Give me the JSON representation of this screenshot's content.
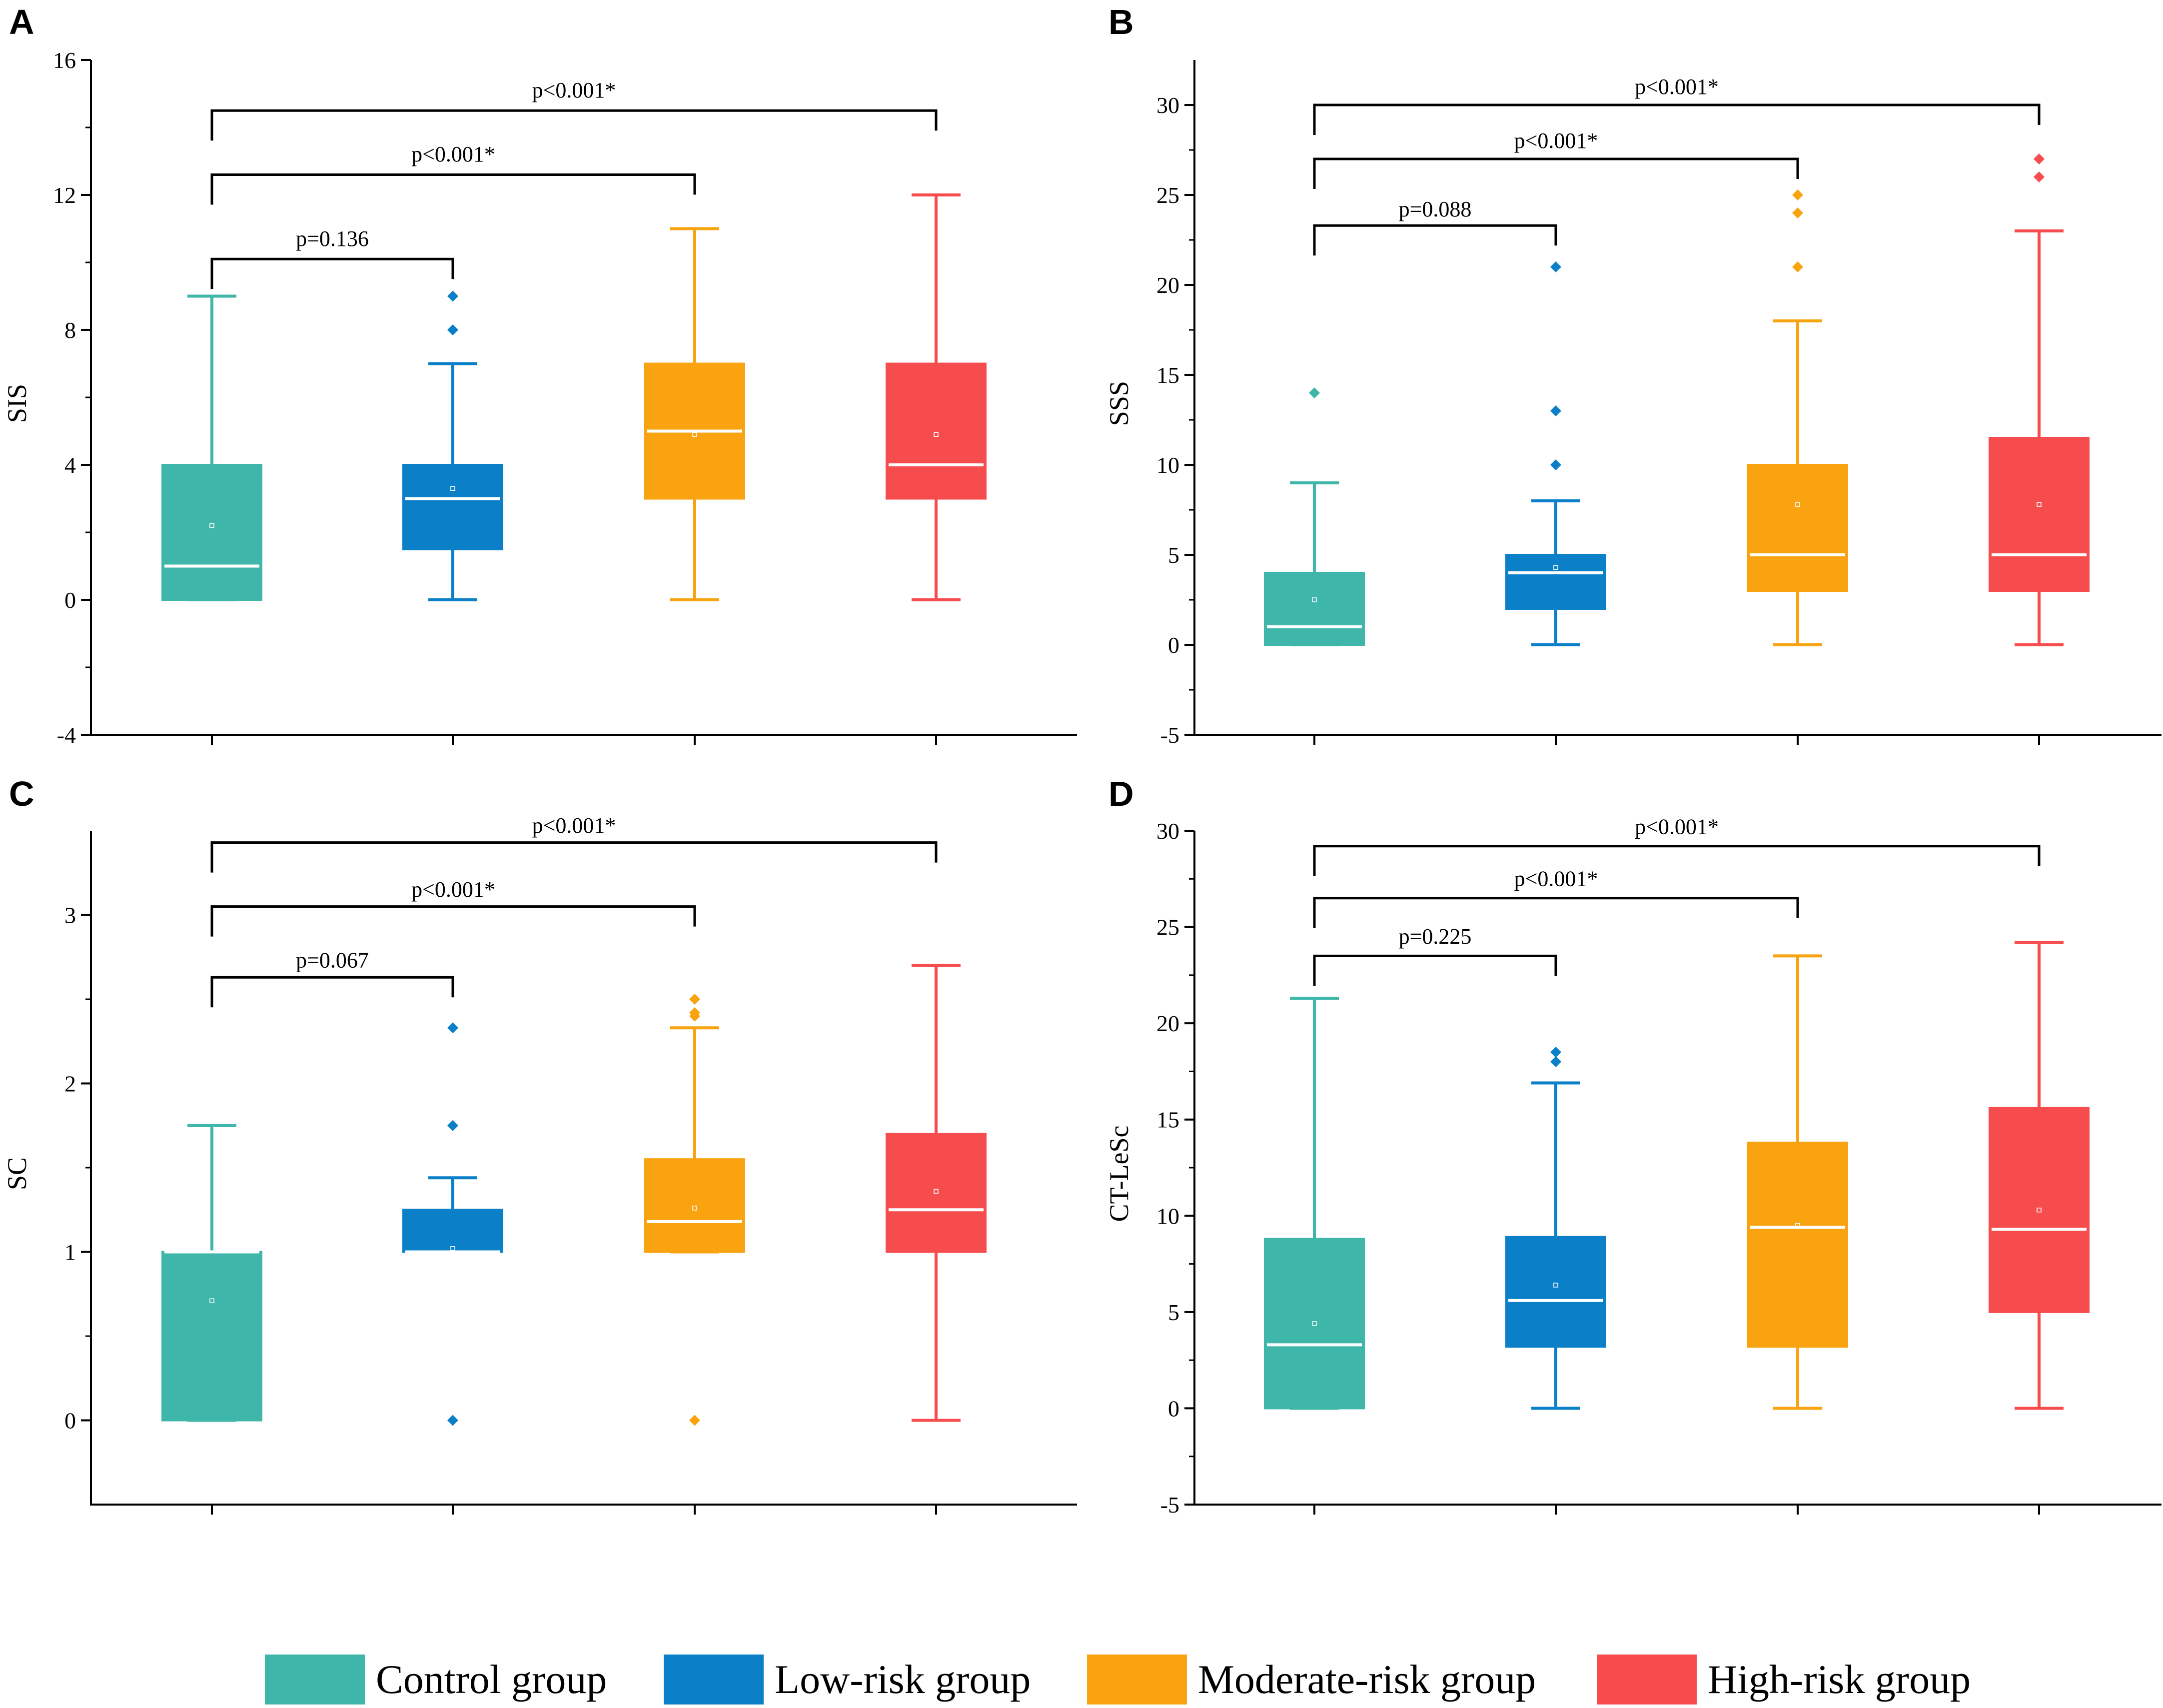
{
  "groups": [
    {
      "name": "Control group",
      "color": "#3fb6aa"
    },
    {
      "name": "Low-risk group",
      "color": "#0b80c8"
    },
    {
      "name": "Moderate-risk group",
      "color": "#f8a30f"
    },
    {
      "name": "High-risk group",
      "color": "#f74c4d"
    }
  ],
  "chart_data": [
    {
      "panel": "A",
      "type": "box",
      "ylabel": "SIS",
      "ylim": [
        -4,
        16
      ],
      "yticks": [
        -4,
        0,
        4,
        8,
        12,
        16
      ],
      "boxes": [
        {
          "group": "Control group",
          "min": 0,
          "q1": 0,
          "median": 1,
          "q3": 4,
          "max": 9,
          "mean": 2.2,
          "outliers": []
        },
        {
          "group": "Low-risk group",
          "min": 0,
          "q1": 1.5,
          "median": 3,
          "q3": 4,
          "max": 7,
          "mean": 3.3,
          "outliers": [
            8,
            9
          ]
        },
        {
          "group": "Moderate-risk group",
          "min": 0,
          "q1": 3,
          "median": 5,
          "q3": 7,
          "max": 11,
          "mean": 4.9,
          "outliers": []
        },
        {
          "group": "High-risk group",
          "min": 0,
          "q1": 3,
          "median": 4,
          "q3": 7,
          "max": 12,
          "mean": 4.9,
          "outliers": []
        }
      ],
      "comparisons": [
        {
          "to": 1,
          "label": "p=0.136",
          "y": 10.1,
          "label_y": 10.7
        },
        {
          "to": 2,
          "label": "p<0.001*",
          "y": 12.6,
          "label_y": 13.2
        },
        {
          "to": 3,
          "label": "p<0.001*",
          "y": 14.5,
          "label_y": 15.1
        }
      ]
    },
    {
      "panel": "B",
      "type": "box",
      "ylabel": "SSS",
      "ylim": [
        -5,
        32.5
      ],
      "yticks": [
        -5,
        0,
        5,
        10,
        15,
        20,
        25,
        30
      ],
      "boxes": [
        {
          "group": "Control group",
          "min": 0,
          "q1": 0,
          "median": 1,
          "q3": 4,
          "max": 9,
          "mean": 2.5,
          "outliers": [
            14
          ]
        },
        {
          "group": "Low-risk group",
          "min": 0,
          "q1": 2,
          "median": 4,
          "q3": 5,
          "max": 8,
          "mean": 4.3,
          "outliers": [
            10,
            13,
            21
          ]
        },
        {
          "group": "Moderate-risk group",
          "min": 0,
          "q1": 3,
          "median": 5,
          "q3": 10,
          "max": 18,
          "mean": 7.8,
          "outliers": [
            21,
            24,
            25
          ]
        },
        {
          "group": "High-risk group",
          "min": 0,
          "q1": 3,
          "median": 5,
          "q3": 11.5,
          "max": 23,
          "mean": 7.8,
          "outliers": [
            26,
            27
          ]
        }
      ],
      "comparisons": [
        {
          "to": 1,
          "label": "p=0.088",
          "y": 23.3,
          "label_y": 24.2
        },
        {
          "to": 2,
          "label": "p<0.001*",
          "y": 27,
          "label_y": 28
        },
        {
          "to": 3,
          "label": "p<0.001*",
          "y": 30,
          "label_y": 31
        }
      ]
    },
    {
      "panel": "C",
      "type": "box",
      "ylabel": "SC",
      "ylim": [
        -0.5,
        3.5
      ],
      "yticks": [
        0,
        1,
        2,
        3
      ],
      "boxes": [
        {
          "group": "Control group",
          "min": 0,
          "q1": 0,
          "median": 1,
          "q3": 1,
          "max": 1.75,
          "mean": 0.71,
          "outliers": []
        },
        {
          "group": "Low-risk group",
          "min": 1,
          "q1": 1,
          "median": 1,
          "q3": 1.25,
          "max": 1.44,
          "mean": 1.02,
          "outliers": [
            0,
            1.75,
            2.33
          ]
        },
        {
          "group": "Moderate-risk group",
          "min": 1,
          "q1": 1,
          "median": 1.18,
          "q3": 1.55,
          "max": 2.33,
          "mean": 1.26,
          "outliers": [
            0,
            2.4,
            2.42,
            2.5
          ]
        },
        {
          "group": "High-risk group",
          "min": 0,
          "q1": 1,
          "median": 1.25,
          "q3": 1.7,
          "max": 2.7,
          "mean": 1.36,
          "outliers": []
        }
      ],
      "comparisons": [
        {
          "to": 1,
          "label": "p=0.067",
          "y": 2.63,
          "label_y": 2.73
        },
        {
          "to": 2,
          "label": "p<0.001*",
          "y": 3.05,
          "label_y": 3.15
        },
        {
          "to": 3,
          "label": "p<0.001*",
          "y": 3.43,
          "label_y": 3.53
        }
      ]
    },
    {
      "panel": "D",
      "type": "box",
      "ylabel": "CT-LeSc",
      "ylim": [
        -5,
        30
      ],
      "yticks": [
        -5,
        0,
        5,
        10,
        15,
        20,
        25,
        30
      ],
      "boxes": [
        {
          "group": "Control group",
          "min": 0,
          "q1": 0,
          "median": 3.3,
          "q3": 8.8,
          "max": 21.3,
          "mean": 4.4,
          "outliers": []
        },
        {
          "group": "Low-risk group",
          "min": 0,
          "q1": 3.2,
          "median": 5.6,
          "q3": 8.9,
          "max": 16.9,
          "mean": 6.4,
          "outliers": [
            18,
            18.5
          ]
        },
        {
          "group": "Moderate-risk group",
          "min": 0,
          "q1": 3.2,
          "median": 9.4,
          "q3": 13.8,
          "max": 23.5,
          "mean": 9.5,
          "outliers": []
        },
        {
          "group": "High-risk group",
          "min": 0,
          "q1": 5,
          "median": 9.3,
          "q3": 15.6,
          "max": 24.2,
          "mean": 10.3,
          "outliers": []
        }
      ],
      "comparisons": [
        {
          "to": 1,
          "label": "p=0.225",
          "y": 23.5,
          "label_y": 24.5
        },
        {
          "to": 2,
          "label": "p<0.001*",
          "y": 26.5,
          "label_y": 27.5
        },
        {
          "to": 3,
          "label": "p<0.001*",
          "y": 29.2,
          "label_y": 30.2
        }
      ]
    }
  ]
}
